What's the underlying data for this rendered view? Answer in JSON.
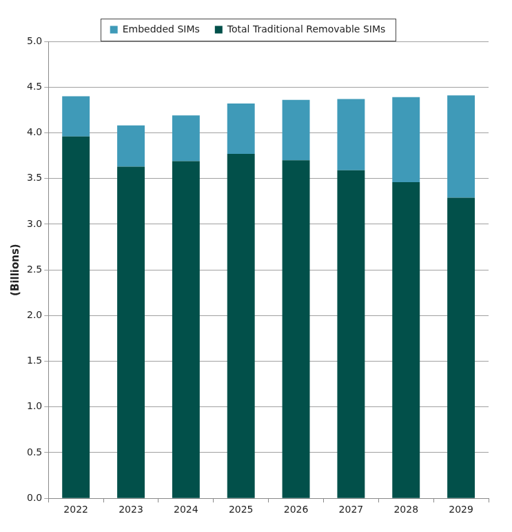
{
  "chart_data": {
    "type": "bar",
    "categories": [
      "2022",
      "2023",
      "2024",
      "2025",
      "2026",
      "2027",
      "2028",
      "2029"
    ],
    "series": [
      {
        "name": "Embedded SIMs",
        "color": "#3f9ab8",
        "values": [
          0.44,
          0.45,
          0.5,
          0.55,
          0.66,
          0.78,
          0.93,
          1.12
        ]
      },
      {
        "name": "Total Traditional Removable SIMs",
        "color": "#02504a",
        "values": [
          3.96,
          3.63,
          3.69,
          3.77,
          3.7,
          3.59,
          3.46,
          3.29
        ]
      }
    ],
    "y_label": "(Billions)",
    "ylim": [
      0,
      5
    ],
    "yticks": [
      {
        "value": 0,
        "label": "0.0"
      },
      0.5,
      {
        "value": 1,
        "label": "1.0"
      },
      1.5,
      {
        "value": 2,
        "label": "2.0"
      },
      2.5,
      {
        "value": 3,
        "label": "3.0"
      },
      3.5,
      {
        "value": 4,
        "label": "4.0"
      },
      4.5,
      {
        "value": 5,
        "label": "5.0"
      }
    ],
    "stacked": true,
    "grid": true,
    "legend": "top"
  }
}
